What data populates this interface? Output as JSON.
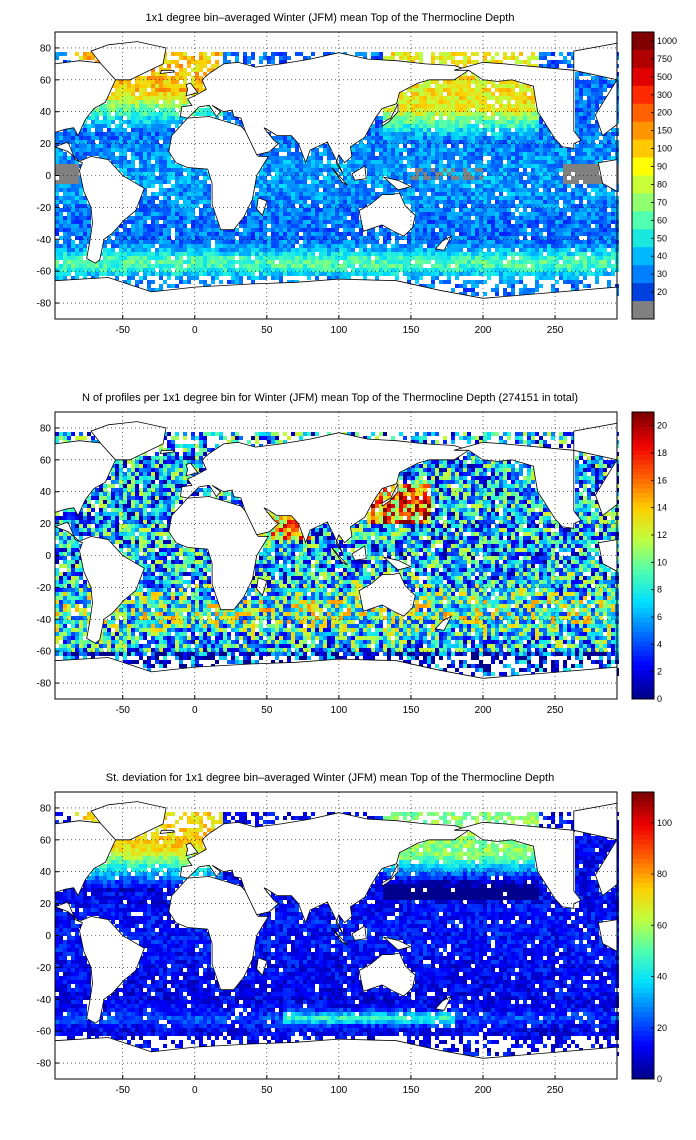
{
  "chart_data": [
    {
      "type": "heatmap",
      "title": "1x1 degree bin–averaged Winter (JFM) mean Top of the Thermocline Depth",
      "x_ticks": [
        -50,
        0,
        50,
        100,
        150,
        200,
        250
      ],
      "y_ticks": [
        80,
        60,
        40,
        20,
        0,
        -20,
        -40,
        -60,
        -80
      ],
      "xlim": [
        -97,
        293
      ],
      "ylim": [
        -90,
        90
      ],
      "grid": true,
      "colorbar": {
        "scale": "categorical",
        "ticks": [
          "1000",
          "750",
          "500",
          "300",
          "200",
          "150",
          "100",
          "90",
          "80",
          "70",
          "60",
          "50",
          "40",
          "30",
          "20"
        ],
        "colors": [
          "#800000",
          "#b00000",
          "#e00000",
          "#ff2a00",
          "#ff6000",
          "#ff9600",
          "#ffc800",
          "#ffff00",
          "#c8ff38",
          "#90ff70",
          "#50ffb0",
          "#18e8e0",
          "#00b8ff",
          "#0080ff",
          "#0040e0",
          "#808080"
        ]
      },
      "field": "mean",
      "palette": [
        "#00008f",
        "#0000ff",
        "#0070ff",
        "#00dfff",
        "#50ffaf",
        "#bfff40",
        "#ffcf00",
        "#ff6000",
        "#ef0000",
        "#800000"
      ]
    },
    {
      "type": "heatmap",
      "title": "N of profiles per 1x1 degree bin for Winter (JFM) mean Top of the Thermocline Depth  (274151 in total)",
      "x_ticks": [
        -50,
        0,
        50,
        100,
        150,
        200,
        250
      ],
      "y_ticks": [
        80,
        60,
        40,
        20,
        0,
        -20,
        -40,
        -60,
        -80
      ],
      "xlim": [
        -97,
        293
      ],
      "ylim": [
        -90,
        90
      ],
      "grid": true,
      "colorbar": {
        "scale": "linear",
        "range": [
          0,
          21
        ],
        "ticks": [
          "20",
          "18",
          "16",
          "14",
          "12",
          "10",
          "8",
          "6",
          "4",
          "2",
          "0"
        ]
      },
      "field": "count",
      "palette": [
        "#00008f",
        "#0000ff",
        "#0070ff",
        "#00dfff",
        "#50ffaf",
        "#bfff40",
        "#ffcf00",
        "#ff6000",
        "#ef0000",
        "#800000"
      ]
    },
    {
      "type": "heatmap",
      "title": "St. deviation for 1x1 degree bin–averaged Winter (JFM) mean Top of the Thermocline Depth",
      "x_ticks": [
        -50,
        0,
        50,
        100,
        150,
        200,
        250
      ],
      "y_ticks": [
        80,
        60,
        40,
        20,
        0,
        -20,
        -40,
        -60,
        -80
      ],
      "xlim": [
        -97,
        293
      ],
      "ylim": [
        -90,
        90
      ],
      "grid": true,
      "colorbar": {
        "scale": "linear",
        "range": [
          0,
          112
        ],
        "ticks": [
          "100",
          "80",
          "60",
          "40",
          "20",
          "0"
        ]
      },
      "field": "std",
      "palette": [
        "#00008f",
        "#0000ff",
        "#0070ff",
        "#00dfff",
        "#50ffaf",
        "#bfff40",
        "#ffcf00",
        "#ff6000",
        "#ef0000",
        "#800000"
      ]
    }
  ]
}
